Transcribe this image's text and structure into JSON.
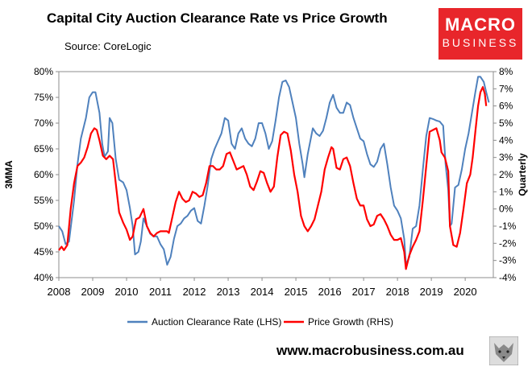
{
  "header": {
    "title": "Capital City Auction Clearance Rate vs Price Growth",
    "source": "Source: CoreLogic"
  },
  "logo": {
    "line1": "MACRO",
    "line2": "BUSINESS"
  },
  "footer": {
    "url": "www.macrobusiness.com.au"
  },
  "colors": {
    "lhs_series": "#4f81bd",
    "rhs_series": "#ff0000"
  },
  "chart_data": {
    "type": "line",
    "title": "Capital City Auction Clearance Rate vs Price Growth",
    "xlabel": "",
    "ylabel_left": "3MMA",
    "ylabel_right": "Quarterly",
    "x_ticks": [
      "2008",
      "2009",
      "2010",
      "2011",
      "2012",
      "2013",
      "2014",
      "2015",
      "2016",
      "2017",
      "2018",
      "2019",
      "2020"
    ],
    "y_left_ticks": [
      "40%",
      "45%",
      "50%",
      "55%",
      "60%",
      "65%",
      "70%",
      "75%",
      "80%"
    ],
    "y_right_ticks": [
      "-4%",
      "-3%",
      "-2%",
      "-1%",
      "0%",
      "1%",
      "2%",
      "3%",
      "4%",
      "5%",
      "6%",
      "7%",
      "8%"
    ],
    "xlim": [
      2008.0,
      2020.83
    ],
    "ylim_left": [
      40,
      80
    ],
    "ylim_right": [
      -4,
      8
    ],
    "grid": false,
    "legend_position": "bottom",
    "series": [
      {
        "name": "Auction Clearance Rate (LHS)",
        "axis": "left",
        "color": "#4f81bd",
        "points": [
          [
            2008.0,
            50
          ],
          [
            2008.1,
            49
          ],
          [
            2008.2,
            46.5
          ],
          [
            2008.3,
            47
          ],
          [
            2008.45,
            55
          ],
          [
            2008.55,
            62
          ],
          [
            2008.65,
            67
          ],
          [
            2008.8,
            71
          ],
          [
            2008.9,
            75
          ],
          [
            2009.0,
            76
          ],
          [
            2009.08,
            76
          ],
          [
            2009.2,
            72
          ],
          [
            2009.28,
            66
          ],
          [
            2009.35,
            63.5
          ],
          [
            2009.45,
            64.5
          ],
          [
            2009.5,
            71
          ],
          [
            2009.58,
            70
          ],
          [
            2009.68,
            63
          ],
          [
            2009.78,
            59
          ],
          [
            2009.9,
            58.5
          ],
          [
            2010.0,
            57
          ],
          [
            2010.1,
            53.5
          ],
          [
            2010.18,
            50
          ],
          [
            2010.25,
            44.5
          ],
          [
            2010.35,
            45
          ],
          [
            2010.42,
            47
          ],
          [
            2010.5,
            51.5
          ],
          [
            2010.6,
            50
          ],
          [
            2010.7,
            48.5
          ],
          [
            2010.8,
            48
          ],
          [
            2010.9,
            48
          ],
          [
            2011.0,
            46.5
          ],
          [
            2011.1,
            45.5
          ],
          [
            2011.2,
            42.5
          ],
          [
            2011.3,
            44
          ],
          [
            2011.4,
            47.5
          ],
          [
            2011.5,
            50
          ],
          [
            2011.6,
            50.5
          ],
          [
            2011.7,
            51.5
          ],
          [
            2011.8,
            52
          ],
          [
            2011.9,
            53
          ],
          [
            2012.0,
            53.5
          ],
          [
            2012.1,
            51
          ],
          [
            2012.2,
            50.5
          ],
          [
            2012.3,
            54
          ],
          [
            2012.4,
            58
          ],
          [
            2012.5,
            63
          ],
          [
            2012.6,
            65
          ],
          [
            2012.7,
            66.5
          ],
          [
            2012.8,
            68
          ],
          [
            2012.9,
            71
          ],
          [
            2013.0,
            70.5
          ],
          [
            2013.1,
            66
          ],
          [
            2013.2,
            65
          ],
          [
            2013.3,
            68
          ],
          [
            2013.4,
            69
          ],
          [
            2013.5,
            67
          ],
          [
            2013.6,
            66
          ],
          [
            2013.7,
            65.5
          ],
          [
            2013.8,
            67
          ],
          [
            2013.9,
            70
          ],
          [
            2014.0,
            70
          ],
          [
            2014.1,
            68
          ],
          [
            2014.2,
            65
          ],
          [
            2014.3,
            66.5
          ],
          [
            2014.4,
            70.5
          ],
          [
            2014.5,
            75
          ],
          [
            2014.6,
            78
          ],
          [
            2014.7,
            78.3
          ],
          [
            2014.8,
            77
          ],
          [
            2014.9,
            74
          ],
          [
            2015.0,
            71
          ],
          [
            2015.1,
            66
          ],
          [
            2015.2,
            62
          ],
          [
            2015.25,
            59.5
          ],
          [
            2015.35,
            64
          ],
          [
            2015.5,
            69
          ],
          [
            2015.6,
            68
          ],
          [
            2015.7,
            67.5
          ],
          [
            2015.8,
            68.5
          ],
          [
            2015.9,
            71
          ],
          [
            2016.0,
            74
          ],
          [
            2016.1,
            75.5
          ],
          [
            2016.2,
            73
          ],
          [
            2016.3,
            72
          ],
          [
            2016.4,
            72
          ],
          [
            2016.5,
            74
          ],
          [
            2016.6,
            73.5
          ],
          [
            2016.7,
            71
          ],
          [
            2016.8,
            69
          ],
          [
            2016.9,
            67
          ],
          [
            2017.0,
            66.5
          ],
          [
            2017.1,
            64
          ],
          [
            2017.2,
            62
          ],
          [
            2017.3,
            61.5
          ],
          [
            2017.4,
            62.5
          ],
          [
            2017.5,
            65
          ],
          [
            2017.6,
            66
          ],
          [
            2017.7,
            62
          ],
          [
            2017.8,
            57.5
          ],
          [
            2017.9,
            54
          ],
          [
            2018.0,
            53
          ],
          [
            2018.1,
            51.5
          ],
          [
            2018.2,
            47.5
          ],
          [
            2018.25,
            42.5
          ],
          [
            2018.35,
            44
          ],
          [
            2018.45,
            49.5
          ],
          [
            2018.55,
            50
          ],
          [
            2018.65,
            54
          ],
          [
            2018.75,
            61
          ],
          [
            2018.85,
            67.5
          ],
          [
            2018.95,
            71
          ],
          [
            2019.05,
            70.8
          ],
          [
            2019.15,
            70.5
          ],
          [
            2019.25,
            70.3
          ],
          [
            2019.35,
            69.5
          ],
          [
            2019.42,
            62
          ],
          [
            2019.5,
            57
          ],
          [
            2019.55,
            50
          ],
          [
            2019.6,
            50.5
          ],
          [
            2019.7,
            57.5
          ],
          [
            2019.8,
            58
          ],
          [
            2019.9,
            61
          ],
          [
            2020.0,
            65
          ],
          [
            2020.1,
            68
          ],
          [
            2020.2,
            72
          ],
          [
            2020.3,
            76
          ],
          [
            2020.38,
            79
          ],
          [
            2020.45,
            79
          ],
          [
            2020.55,
            78
          ],
          [
            2020.62,
            76
          ],
          [
            2020.7,
            74
          ]
        ]
      },
      {
        "name": "Price Growth (RHS)",
        "axis": "right",
        "color": "#ff0000",
        "points": [
          [
            2008.0,
            -2.4
          ],
          [
            2008.08,
            -2.2
          ],
          [
            2008.15,
            -2.4
          ],
          [
            2008.25,
            -2.1
          ],
          [
            2008.35,
            0
          ],
          [
            2008.45,
            1.5
          ],
          [
            2008.55,
            2.5
          ],
          [
            2008.65,
            2.7
          ],
          [
            2008.75,
            3.0
          ],
          [
            2008.85,
            3.6
          ],
          [
            2008.95,
            4.4
          ],
          [
            2009.05,
            4.7
          ],
          [
            2009.12,
            4.6
          ],
          [
            2009.2,
            4.0
          ],
          [
            2009.3,
            3.1
          ],
          [
            2009.4,
            2.9
          ],
          [
            2009.5,
            3.1
          ],
          [
            2009.6,
            2.9
          ],
          [
            2009.68,
            1.5
          ],
          [
            2009.78,
            -0.2
          ],
          [
            2009.9,
            -0.8
          ],
          [
            2010.0,
            -1.2
          ],
          [
            2010.1,
            -1.8
          ],
          [
            2010.18,
            -1.6
          ],
          [
            2010.28,
            -0.6
          ],
          [
            2010.38,
            -0.5
          ],
          [
            2010.5,
            0
          ],
          [
            2010.6,
            -1.0
          ],
          [
            2010.7,
            -1.4
          ],
          [
            2010.8,
            -1.6
          ],
          [
            2010.9,
            -1.4
          ],
          [
            2011.0,
            -1.3
          ],
          [
            2011.1,
            -1.3
          ],
          [
            2011.2,
            -1.3
          ],
          [
            2011.25,
            -1.4
          ],
          [
            2011.35,
            -0.5
          ],
          [
            2011.45,
            0.4
          ],
          [
            2011.55,
            1.0
          ],
          [
            2011.65,
            0.6
          ],
          [
            2011.75,
            0.4
          ],
          [
            2011.85,
            0.5
          ],
          [
            2011.95,
            1.0
          ],
          [
            2012.05,
            0.9
          ],
          [
            2012.15,
            0.7
          ],
          [
            2012.25,
            0.8
          ],
          [
            2012.35,
            1.5
          ],
          [
            2012.45,
            2.5
          ],
          [
            2012.55,
            2.5
          ],
          [
            2012.65,
            2.3
          ],
          [
            2012.75,
            2.3
          ],
          [
            2012.85,
            2.5
          ],
          [
            2012.95,
            3.2
          ],
          [
            2013.05,
            3.3
          ],
          [
            2013.15,
            2.8
          ],
          [
            2013.25,
            2.3
          ],
          [
            2013.35,
            2.4
          ],
          [
            2013.45,
            2.5
          ],
          [
            2013.55,
            2.0
          ],
          [
            2013.65,
            1.3
          ],
          [
            2013.75,
            1.1
          ],
          [
            2013.85,
            1.6
          ],
          [
            2013.95,
            2.2
          ],
          [
            2014.05,
            2.1
          ],
          [
            2014.15,
            1.5
          ],
          [
            2014.25,
            1.0
          ],
          [
            2014.35,
            1.3
          ],
          [
            2014.45,
            3.0
          ],
          [
            2014.55,
            4.3
          ],
          [
            2014.65,
            4.5
          ],
          [
            2014.75,
            4.4
          ],
          [
            2014.85,
            3.4
          ],
          [
            2014.95,
            2.0
          ],
          [
            2015.05,
            1.0
          ],
          [
            2015.15,
            -0.4
          ],
          [
            2015.25,
            -1.0
          ],
          [
            2015.35,
            -1.3
          ],
          [
            2015.45,
            -1.0
          ],
          [
            2015.55,
            -0.6
          ],
          [
            2015.65,
            0.2
          ],
          [
            2015.75,
            1.0
          ],
          [
            2015.85,
            2.3
          ],
          [
            2015.95,
            3.0
          ],
          [
            2016.05,
            3.6
          ],
          [
            2016.1,
            3.5
          ],
          [
            2016.2,
            2.4
          ],
          [
            2016.3,
            2.3
          ],
          [
            2016.4,
            2.9
          ],
          [
            2016.5,
            3.0
          ],
          [
            2016.6,
            2.5
          ],
          [
            2016.7,
            1.5
          ],
          [
            2016.8,
            0.6
          ],
          [
            2016.9,
            0.2
          ],
          [
            2017.0,
            0.2
          ],
          [
            2017.1,
            -0.6
          ],
          [
            2017.2,
            -1.0
          ],
          [
            2017.3,
            -0.9
          ],
          [
            2017.4,
            -0.4
          ],
          [
            2017.5,
            -0.3
          ],
          [
            2017.6,
            -0.6
          ],
          [
            2017.7,
            -1.0
          ],
          [
            2017.8,
            -1.5
          ],
          [
            2017.9,
            -1.8
          ],
          [
            2018.0,
            -1.8
          ],
          [
            2018.1,
            -1.7
          ],
          [
            2018.2,
            -2.5
          ],
          [
            2018.25,
            -3.5
          ],
          [
            2018.35,
            -2.7
          ],
          [
            2018.45,
            -2.2
          ],
          [
            2018.55,
            -1.8
          ],
          [
            2018.65,
            -1.3
          ],
          [
            2018.75,
            0.5
          ],
          [
            2018.85,
            2.5
          ],
          [
            2018.95,
            4.5
          ],
          [
            2019.05,
            4.6
          ],
          [
            2019.15,
            4.7
          ],
          [
            2019.25,
            4.0
          ],
          [
            2019.3,
            3.3
          ],
          [
            2019.4,
            3.0
          ],
          [
            2019.5,
            2.2
          ],
          [
            2019.55,
            -1.0
          ],
          [
            2019.65,
            -2.1
          ],
          [
            2019.75,
            -2.2
          ],
          [
            2019.85,
            -1.4
          ],
          [
            2019.95,
            0
          ],
          [
            2020.05,
            1.5
          ],
          [
            2020.15,
            2.0
          ],
          [
            2020.22,
            3.0
          ],
          [
            2020.3,
            4.5
          ],
          [
            2020.38,
            6.0
          ],
          [
            2020.45,
            6.8
          ],
          [
            2020.52,
            7.1
          ],
          [
            2020.58,
            6.7
          ],
          [
            2020.62,
            6.0
          ]
        ]
      }
    ]
  }
}
